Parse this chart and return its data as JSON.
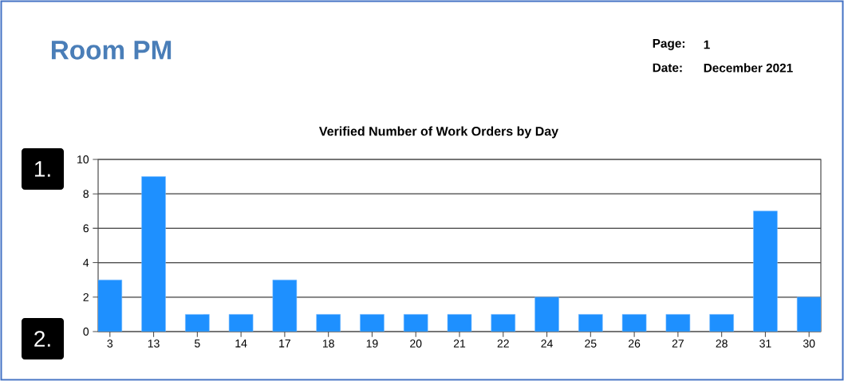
{
  "chart_data": {
    "type": "bar",
    "title": "Verified Number of Work Orders by Day",
    "categories": [
      "3",
      "13",
      "5",
      "14",
      "17",
      "18",
      "19",
      "20",
      "21",
      "22",
      "24",
      "25",
      "26",
      "27",
      "28",
      "31",
      "30"
    ],
    "values": [
      3,
      9,
      1,
      1,
      3,
      1,
      1,
      1,
      1,
      1,
      2,
      1,
      1,
      1,
      1,
      7,
      2
    ],
    "color": "#1e90ff",
    "ylim": [
      0,
      10
    ],
    "yticks": [
      0,
      2,
      4,
      6,
      8,
      10
    ],
    "grid": "y",
    "annotations": [
      "Room PM",
      "Page:",
      "1",
      "Date:",
      "December 2021",
      "1.",
      "2."
    ]
  }
}
